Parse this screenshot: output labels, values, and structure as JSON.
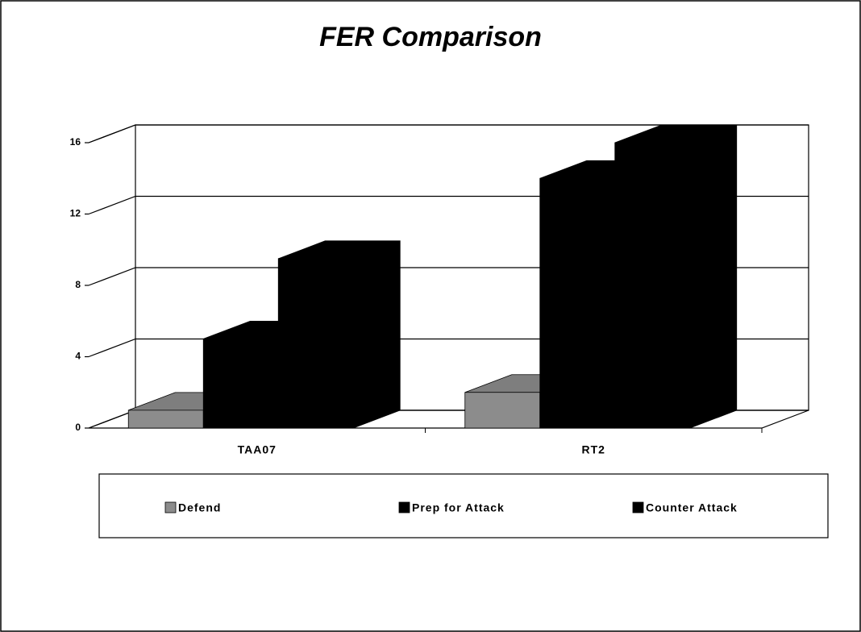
{
  "chart_data": {
    "type": "bar3d",
    "title": "FER Comparison",
    "categories": [
      "TAA07",
      "RT2"
    ],
    "series": [
      {
        "name": "Defend",
        "color": "#8c8c8c",
        "values": [
          1,
          2
        ]
      },
      {
        "name": "Prep for Attack",
        "color": "#000000",
        "values": [
          5,
          14
        ]
      },
      {
        "name": "Counter Attack",
        "color": "#000000",
        "values": [
          9.5,
          16
        ]
      }
    ],
    "ylim": [
      0,
      16
    ],
    "yticks": [
      0,
      4,
      8,
      12,
      16
    ],
    "grid": true,
    "legend": "bottom"
  }
}
